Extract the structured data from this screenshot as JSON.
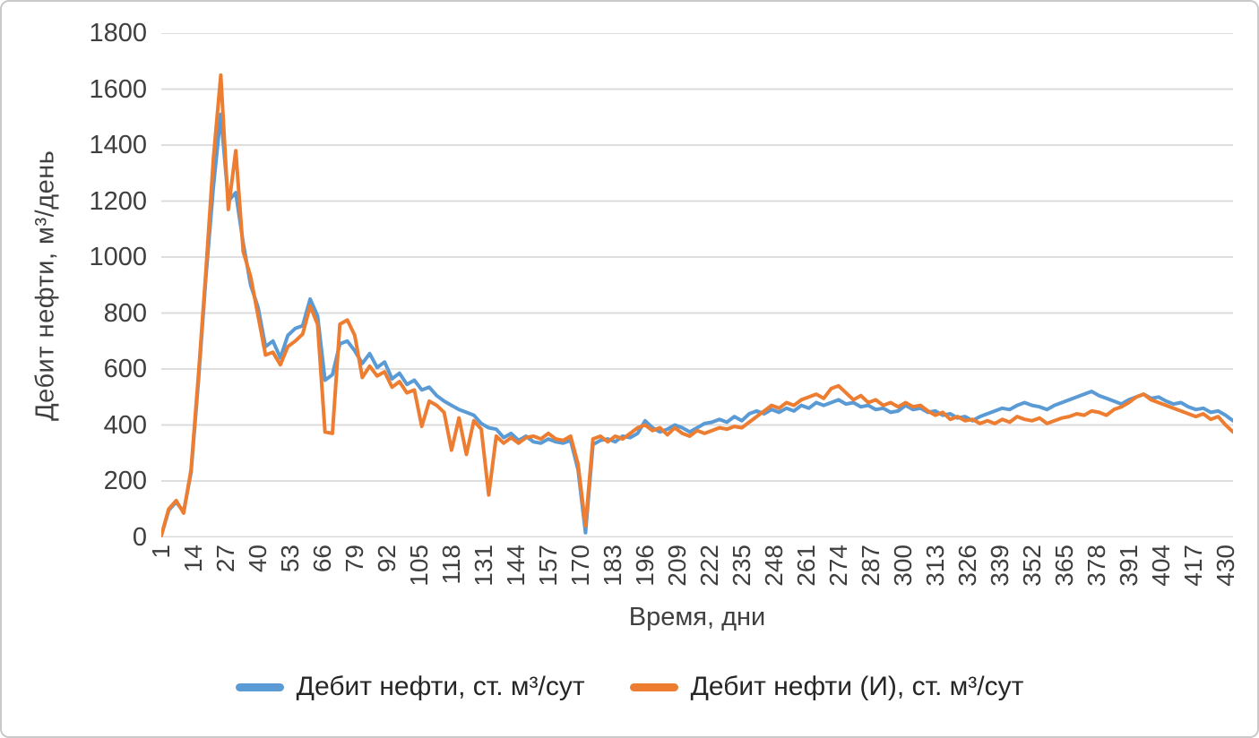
{
  "chart_data": {
    "type": "line",
    "title": "",
    "xlabel": "Время, дни",
    "ylabel": "Дебит нефти,  м³/день",
    "xlim": [
      1,
      433
    ],
    "ylim": [
      0,
      1800
    ],
    "grid": "horizontal-only",
    "gridline_color": "#d9d9d9",
    "legend_position": "bottom",
    "y_ticks": [
      0,
      200,
      400,
      600,
      800,
      1000,
      1200,
      1400,
      1600,
      1800
    ],
    "x_ticks": [
      1,
      14,
      27,
      40,
      53,
      66,
      79,
      92,
      105,
      118,
      131,
      144,
      157,
      170,
      183,
      196,
      209,
      222,
      235,
      248,
      261,
      274,
      287,
      300,
      313,
      326,
      339,
      352,
      365,
      378,
      391,
      404,
      417,
      430
    ],
    "x": [
      1,
      4,
      7,
      10,
      13,
      16,
      19,
      22,
      25,
      28,
      31,
      34,
      37,
      40,
      43,
      46,
      49,
      52,
      55,
      58,
      61,
      64,
      67,
      70,
      73,
      76,
      79,
      82,
      85,
      88,
      91,
      94,
      97,
      100,
      103,
      106,
      109,
      112,
      115,
      118,
      121,
      124,
      127,
      130,
      133,
      136,
      139,
      142,
      145,
      148,
      151,
      154,
      157,
      160,
      163,
      166,
      169,
      172,
      175,
      178,
      181,
      184,
      187,
      190,
      193,
      196,
      199,
      202,
      205,
      208,
      211,
      214,
      217,
      220,
      223,
      226,
      229,
      232,
      235,
      238,
      241,
      244,
      247,
      250,
      253,
      256,
      259,
      262,
      265,
      268,
      271,
      274,
      277,
      280,
      283,
      286,
      289,
      292,
      295,
      298,
      301,
      304,
      307,
      310,
      313,
      316,
      319,
      322,
      325,
      328,
      331,
      334,
      337,
      340,
      343,
      346,
      349,
      352,
      355,
      358,
      361,
      364,
      367,
      370,
      373,
      376,
      379,
      382,
      385,
      388,
      391,
      394,
      397,
      400,
      403,
      406,
      409,
      412,
      415,
      418,
      421,
      424,
      427,
      430,
      433
    ],
    "series": [
      {
        "name": "Дебит нефти, ст. м³/сут",
        "color": "#5b9bd5",
        "values": [
          5,
          95,
          125,
          90,
          230,
          560,
          930,
          1250,
          1510,
          1200,
          1230,
          1050,
          900,
          820,
          680,
          700,
          640,
          720,
          745,
          755,
          850,
          790,
          560,
          580,
          690,
          700,
          665,
          620,
          655,
          605,
          625,
          565,
          585,
          545,
          560,
          525,
          535,
          505,
          485,
          470,
          455,
          445,
          435,
          405,
          390,
          385,
          355,
          370,
          345,
          360,
          340,
          335,
          350,
          340,
          335,
          345,
          240,
          15,
          330,
          345,
          350,
          340,
          360,
          355,
          370,
          415,
          390,
          375,
          385,
          400,
          390,
          375,
          390,
          405,
          410,
          420,
          410,
          430,
          415,
          440,
          450,
          440,
          455,
          445,
          460,
          450,
          470,
          460,
          480,
          470,
          480,
          490,
          475,
          480,
          465,
          470,
          455,
          460,
          445,
          450,
          470,
          455,
          460,
          445,
          450,
          435,
          440,
          425,
          430,
          415,
          430,
          440,
          450,
          460,
          455,
          470,
          480,
          470,
          465,
          455,
          470,
          480,
          490,
          500,
          510,
          520,
          505,
          495,
          485,
          475,
          490,
          500,
          510,
          495,
          500,
          485,
          475,
          480,
          465,
          455,
          460,
          445,
          450,
          435,
          415
        ]
      },
      {
        "name": "Дебит нефти (И), ст. м³/сут",
        "color": "#ed7d31",
        "values": [
          5,
          100,
          130,
          85,
          240,
          580,
          950,
          1350,
          1650,
          1170,
          1380,
          1020,
          930,
          790,
          650,
          660,
          615,
          680,
          700,
          725,
          825,
          760,
          375,
          370,
          760,
          775,
          720,
          570,
          610,
          575,
          590,
          535,
          555,
          515,
          525,
          395,
          485,
          470,
          445,
          310,
          425,
          295,
          415,
          385,
          150,
          360,
          335,
          355,
          335,
          355,
          360,
          350,
          370,
          350,
          345,
          360,
          260,
          40,
          350,
          360,
          340,
          360,
          350,
          370,
          390,
          400,
          380,
          390,
          365,
          390,
          370,
          360,
          380,
          370,
          380,
          390,
          385,
          395,
          390,
          410,
          430,
          450,
          470,
          460,
          480,
          470,
          490,
          500,
          510,
          495,
          530,
          540,
          515,
          490,
          505,
          480,
          490,
          470,
          480,
          465,
          480,
          465,
          470,
          450,
          435,
          445,
          420,
          430,
          415,
          420,
          405,
          415,
          405,
          420,
          410,
          430,
          420,
          415,
          425,
          405,
          415,
          425,
          430,
          440,
          435,
          450,
          445,
          435,
          455,
          465,
          480,
          500,
          510,
          490,
          480,
          470,
          460,
          450,
          440,
          430,
          440,
          420,
          430,
          400,
          375
        ]
      }
    ]
  }
}
